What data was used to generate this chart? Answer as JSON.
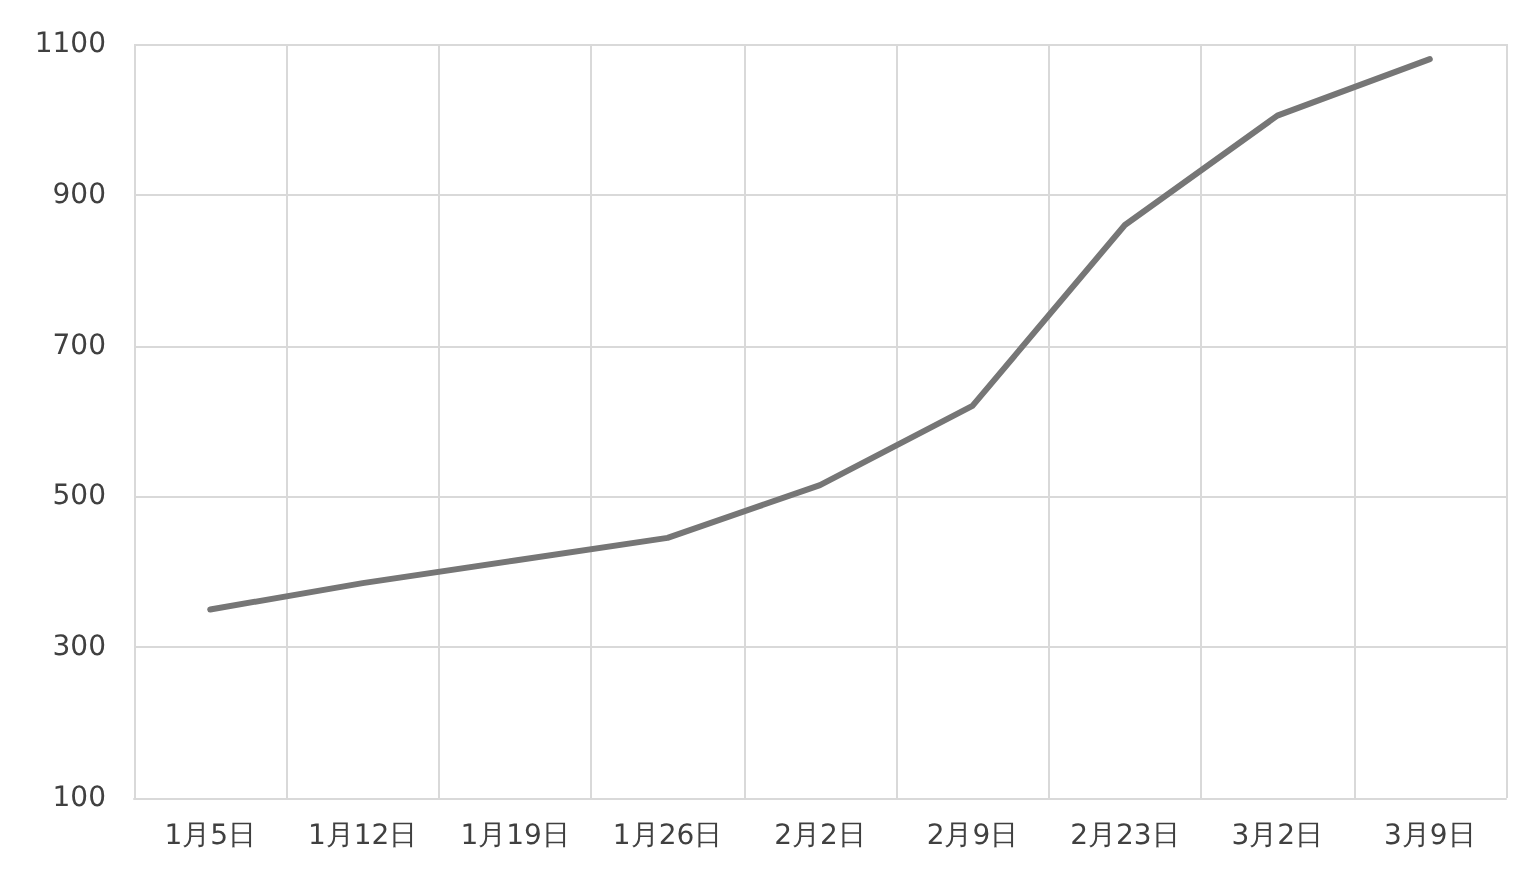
{
  "chart_data": {
    "type": "line",
    "categories": [
      "1月5日",
      "1月12日",
      "1月19日",
      "1月26日",
      "2月2日",
      "2月9日",
      "2月23日",
      "3月2日",
      "3月9日"
    ],
    "series": [
      {
        "color": "#767676",
        "values": [
          350,
          385,
          415,
          445,
          515,
          620,
          860,
          1005,
          1080
        ]
      }
    ],
    "ylim": [
      100,
      1100
    ],
    "yticks": [
      100,
      300,
      500,
      700,
      900,
      1100
    ],
    "grid": true,
    "marker": "none",
    "line_style": "solid"
  }
}
